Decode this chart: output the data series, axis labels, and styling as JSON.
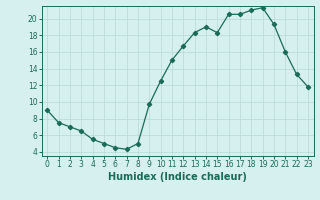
{
  "x": [
    0,
    1,
    2,
    3,
    4,
    5,
    6,
    7,
    8,
    9,
    10,
    11,
    12,
    13,
    14,
    15,
    16,
    17,
    18,
    19,
    20,
    21,
    22,
    23
  ],
  "y": [
    9,
    7.5,
    7,
    6.5,
    5.5,
    5,
    4.5,
    4.3,
    5,
    9.7,
    12.5,
    15,
    16.7,
    18.3,
    19,
    18.3,
    20.5,
    20.5,
    21,
    21.3,
    19.3,
    16,
    13.3,
    11.8
  ],
  "line_color": "#1a6b5a",
  "marker": "D",
  "marker_size": 2.2,
  "bg_color": "#d6f0ef",
  "grid_color": "#b8d8d6",
  "xlabel": "Humidex (Indice chaleur)",
  "xlim": [
    -0.5,
    23.5
  ],
  "ylim": [
    3.5,
    21.5
  ],
  "yticks": [
    4,
    6,
    8,
    10,
    12,
    14,
    16,
    18,
    20
  ],
  "xticks": [
    0,
    1,
    2,
    3,
    4,
    5,
    6,
    7,
    8,
    9,
    10,
    11,
    12,
    13,
    14,
    15,
    16,
    17,
    18,
    19,
    20,
    21,
    22,
    23
  ],
  "tick_label_fontsize": 5.5,
  "xlabel_fontsize": 7.0
}
